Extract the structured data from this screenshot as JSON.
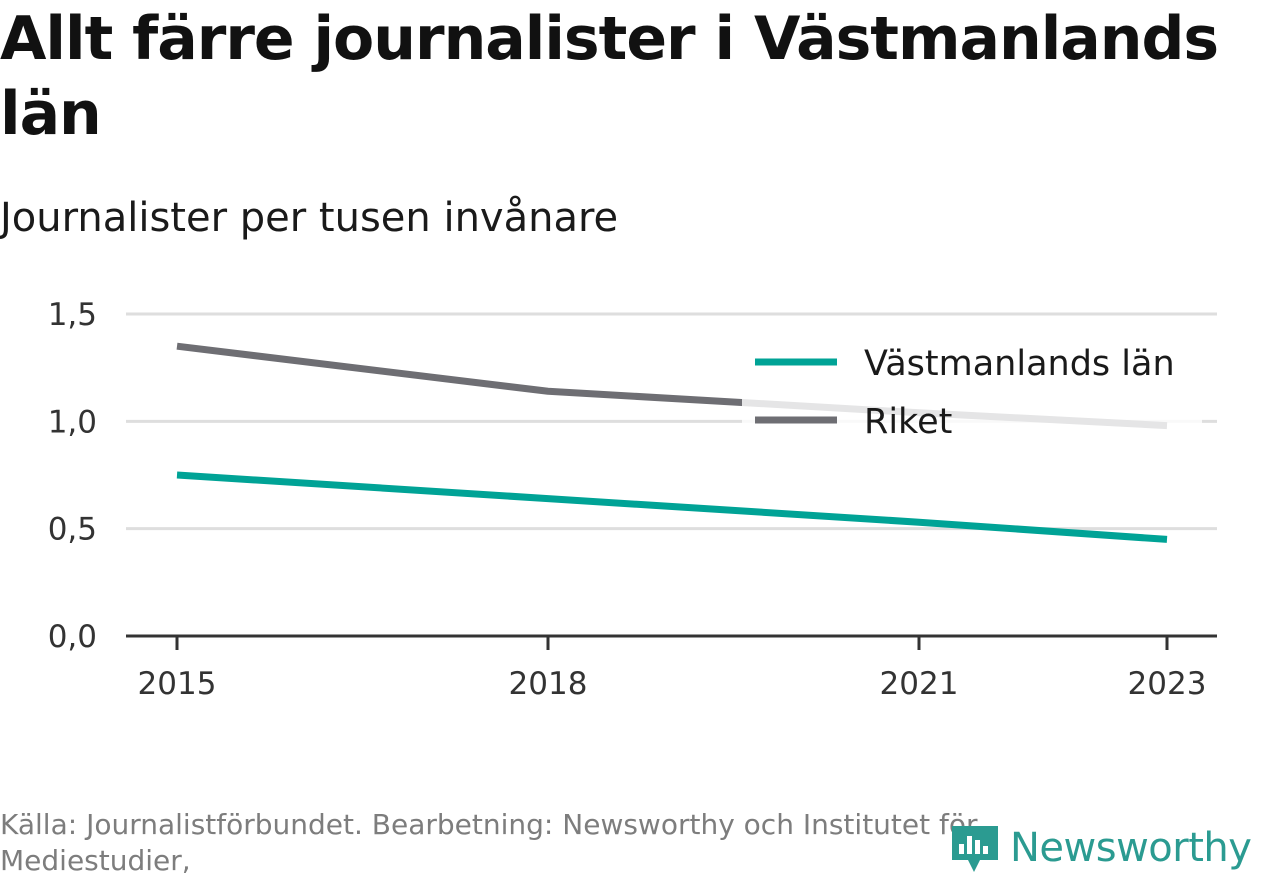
{
  "title": "Allt färre journalister i Västmanlands län",
  "subtitle": "Journalister per tusen invånare",
  "source": "Källa: Journalistförbundet. Bearbetning: Newsworthy och Institutet för Mediestudier,",
  "brand": {
    "name": "Newsworthy",
    "icon": "newsworthy-logo-icon",
    "color": "#2b9b91"
  },
  "chart_data": {
    "type": "line",
    "x": [
      2015,
      2018,
      2021,
      2023
    ],
    "x_tick_labels": [
      "2015",
      "2018",
      "2021",
      "2023"
    ],
    "ylim": [
      0,
      1.5
    ],
    "y_ticks": [
      0,
      0.5,
      1.0,
      1.5
    ],
    "y_tick_labels": [
      "0,0",
      "0,5",
      "1,0",
      "1,5"
    ],
    "grid": true,
    "legend_position": "top-right",
    "series": [
      {
        "name": "Västmanlands län",
        "color": "#00a396",
        "values": [
          0.75,
          0.64,
          0.53,
          0.45
        ]
      },
      {
        "name": "Riket",
        "color": "#6e6e73",
        "values": [
          1.35,
          1.14,
          1.04,
          0.98
        ]
      }
    ]
  }
}
